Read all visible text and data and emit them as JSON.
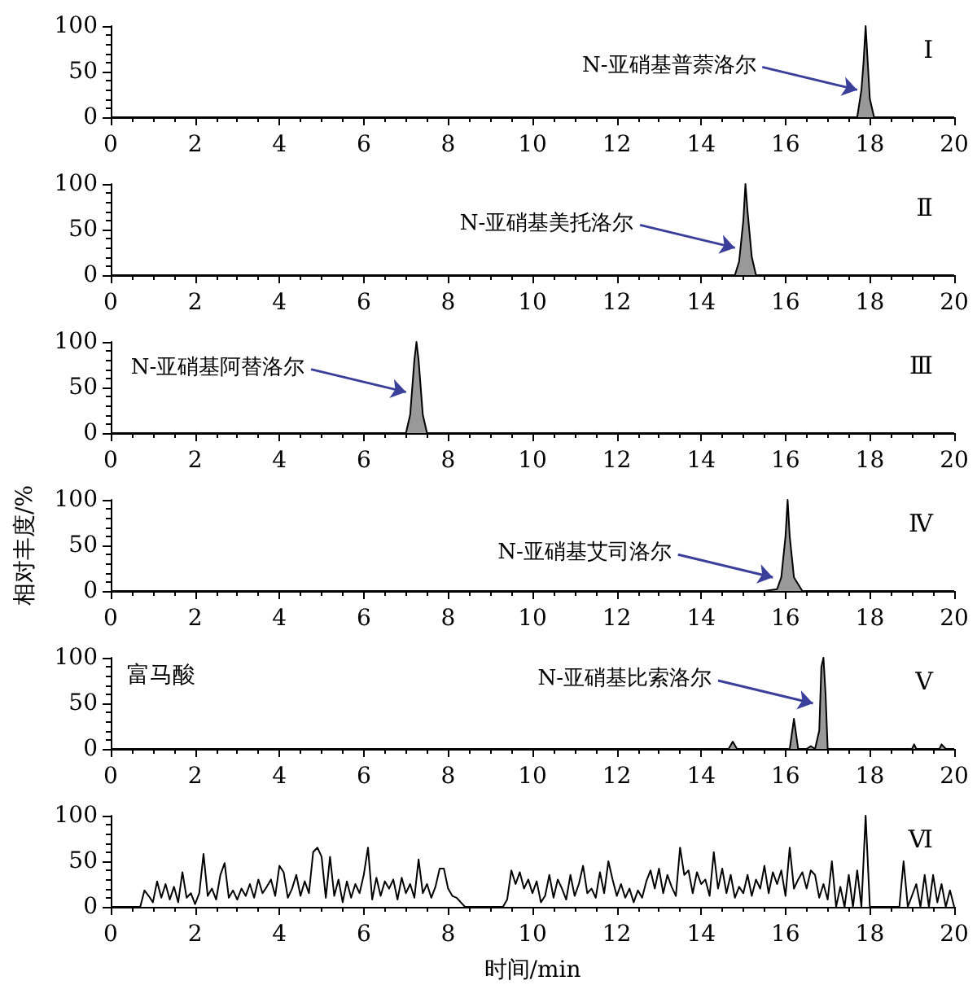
{
  "chart_data": [
    {
      "type": "area",
      "title": "Ⅰ",
      "x": [
        0,
        17.7,
        17.8,
        17.85,
        17.9,
        17.95,
        18.0,
        18.1,
        20
      ],
      "values": [
        0,
        0,
        30,
        60,
        100,
        60,
        20,
        0,
        0
      ],
      "color": "#000000",
      "xlim": [
        0,
        20
      ],
      "xticks": [
        0,
        2,
        4,
        6,
        8,
        10,
        12,
        14,
        16,
        18,
        20
      ],
      "ylim": [
        0,
        100
      ],
      "yticks": [
        0,
        50,
        100
      ],
      "marker": "none",
      "annotations": [
        {
          "text": "N-亚硝基普萘洛尔",
          "x": 17.85,
          "y": 30
        }
      ]
    },
    {
      "type": "area",
      "title": "Ⅱ",
      "x": [
        0,
        14.8,
        14.9,
        15.0,
        15.05,
        15.1,
        15.2,
        15.3,
        20
      ],
      "values": [
        0,
        0,
        15,
        60,
        100,
        70,
        20,
        0,
        0
      ],
      "color": "#000000",
      "xlim": [
        0,
        20
      ],
      "xticks": [
        0,
        2,
        4,
        6,
        8,
        10,
        12,
        14,
        16,
        18,
        20
      ],
      "ylim": [
        0,
        100
      ],
      "yticks": [
        0,
        50,
        100
      ],
      "marker": "none",
      "annotations": [
        {
          "text": "N-亚硝基美托洛尔",
          "x": 14.95,
          "y": 30
        }
      ]
    },
    {
      "type": "area",
      "title": "Ⅲ",
      "x": [
        0,
        7.0,
        7.1,
        7.2,
        7.25,
        7.3,
        7.4,
        7.5,
        20
      ],
      "values": [
        0,
        0,
        20,
        80,
        100,
        80,
        20,
        0,
        0
      ],
      "color": "#000000",
      "xlim": [
        0,
        20
      ],
      "xticks": [
        0,
        2,
        4,
        6,
        8,
        10,
        12,
        14,
        16,
        18,
        20
      ],
      "ylim": [
        0,
        100
      ],
      "yticks": [
        0,
        50,
        100
      ],
      "marker": "none",
      "annotations": [
        {
          "text": "N-亚硝基阿替洛尔",
          "x": 7.15,
          "y": 45
        }
      ]
    },
    {
      "type": "area",
      "title": "Ⅳ",
      "ylabel": "相对丰度/%",
      "x": [
        0,
        15.5,
        15.8,
        15.9,
        16.0,
        16.05,
        16.1,
        16.2,
        16.4,
        20
      ],
      "values": [
        0,
        0,
        2,
        15,
        60,
        100,
        60,
        15,
        0,
        0
      ],
      "color": "#000000",
      "xlim": [
        0,
        20
      ],
      "xticks": [
        0,
        2,
        4,
        6,
        8,
        10,
        12,
        14,
        16,
        18,
        20
      ],
      "ylim": [
        0,
        100
      ],
      "yticks": [
        0,
        50,
        100
      ],
      "marker": "none",
      "annotations": [
        {
          "text": "N-亚硝基艾司洛尔",
          "x": 15.85,
          "y": 15
        }
      ]
    },
    {
      "type": "area",
      "title": "Ⅴ",
      "x": [
        0,
        14.65,
        14.75,
        14.85,
        16.1,
        16.2,
        16.3,
        16.5,
        16.6,
        16.7,
        16.8,
        16.85,
        16.9,
        16.95,
        17.0,
        19.0,
        19.05,
        19.1,
        19.65,
        19.7,
        19.8,
        20
      ],
      "values": [
        0,
        0,
        8,
        0,
        0,
        33,
        0,
        0,
        3,
        0,
        20,
        90,
        100,
        60,
        0,
        0,
        5,
        0,
        0,
        5,
        0,
        0
      ],
      "color": "#000000",
      "xlim": [
        0,
        20
      ],
      "xticks": [
        0,
        2,
        4,
        6,
        8,
        10,
        12,
        14,
        16,
        18,
        20
      ],
      "ylim": [
        0,
        100
      ],
      "yticks": [
        0,
        50,
        100
      ],
      "marker": "none",
      "annotations": [
        "富马酸",
        {
          "text": "N-亚硝基比索洛尔",
          "x": 16.8,
          "y": 50
        }
      ]
    },
    {
      "type": "line",
      "title": "Ⅵ",
      "xlabel": "时间/min",
      "color": "#000000",
      "xlim": [
        0,
        20
      ],
      "xticks": [
        0,
        2,
        4,
        6,
        8,
        10,
        12,
        14,
        16,
        18,
        20
      ],
      "ylim": [
        0,
        100
      ],
      "yticks": [
        0,
        50,
        100
      ],
      "marker": "none",
      "x": [
        0,
        0.7,
        0.8,
        0.9,
        1.0,
        1.1,
        1.2,
        1.3,
        1.4,
        1.5,
        1.6,
        1.7,
        1.8,
        1.9,
        2.0,
        2.1,
        2.2,
        2.3,
        2.4,
        2.5,
        2.6,
        2.7,
        2.8,
        2.9,
        3.0,
        3.1,
        3.2,
        3.3,
        3.4,
        3.5,
        3.6,
        3.7,
        3.8,
        3.9,
        4.0,
        4.1,
        4.2,
        4.3,
        4.4,
        4.5,
        4.6,
        4.7,
        4.8,
        4.9,
        5.0,
        5.1,
        5.2,
        5.3,
        5.4,
        5.5,
        5.6,
        5.7,
        5.8,
        5.9,
        6.0,
        6.1,
        6.2,
        6.3,
        6.4,
        6.5,
        6.6,
        6.7,
        6.8,
        6.9,
        7.0,
        7.1,
        7.2,
        7.3,
        7.4,
        7.5,
        7.6,
        7.7,
        7.8,
        7.9,
        8.0,
        8.1,
        8.2,
        8.3,
        8.4,
        9.3,
        9.4,
        9.5,
        9.6,
        9.7,
        9.8,
        9.9,
        10.0,
        10.1,
        10.2,
        10.3,
        10.4,
        10.5,
        10.6,
        10.7,
        10.8,
        10.9,
        11.0,
        11.1,
        11.2,
        11.3,
        11.4,
        11.5,
        11.6,
        11.7,
        11.8,
        11.9,
        12.0,
        12.1,
        12.2,
        12.3,
        12.4,
        12.5,
        12.6,
        12.7,
        12.8,
        12.9,
        13.0,
        13.1,
        13.2,
        13.3,
        13.4,
        13.5,
        13.6,
        13.7,
        13.8,
        13.9,
        14.0,
        14.1,
        14.2,
        14.3,
        14.4,
        14.5,
        14.6,
        14.7,
        14.8,
        14.9,
        15.0,
        15.1,
        15.2,
        15.3,
        15.4,
        15.5,
        15.6,
        15.7,
        15.8,
        15.9,
        16.0,
        16.1,
        16.2,
        16.3,
        16.4,
        16.5,
        16.6,
        16.7,
        16.8,
        16.9,
        17.0,
        17.1,
        17.2,
        17.3,
        17.4,
        17.5,
        17.6,
        17.7,
        17.8,
        17.9,
        18.0,
        18.7,
        18.8,
        18.9,
        19.1,
        19.2,
        19.3,
        19.4,
        19.5,
        19.6,
        19.7,
        19.8,
        19.9,
        20
      ],
      "values": [
        0,
        0,
        18,
        12,
        5,
        28,
        10,
        25,
        8,
        22,
        5,
        38,
        10,
        15,
        3,
        15,
        58,
        12,
        20,
        8,
        35,
        48,
        10,
        18,
        8,
        20,
        12,
        25,
        10,
        30,
        15,
        22,
        30,
        12,
        45,
        38,
        10,
        20,
        35,
        12,
        28,
        15,
        60,
        65,
        55,
        10,
        55,
        12,
        30,
        5,
        28,
        10,
        25,
        15,
        35,
        65,
        8,
        32,
        12,
        28,
        20,
        30,
        8,
        32,
        15,
        25,
        10,
        52,
        15,
        25,
        10,
        22,
        42,
        42,
        20,
        12,
        10,
        5,
        0,
        0,
        8,
        40,
        25,
        38,
        20,
        30,
        15,
        28,
        5,
        12,
        35,
        10,
        30,
        20,
        8,
        35,
        12,
        25,
        45,
        15,
        20,
        10,
        38,
        15,
        50,
        30,
        12,
        25,
        10,
        20,
        5,
        18,
        10,
        28,
        40,
        20,
        42,
        15,
        35,
        22,
        12,
        65,
        35,
        40,
        15,
        38,
        25,
        30,
        12,
        60,
        20,
        42,
        15,
        35,
        10,
        22,
        15,
        35,
        12,
        30,
        20,
        45,
        15,
        38,
        25,
        40,
        12,
        65,
        20,
        30,
        38,
        20,
        40,
        35,
        10,
        25,
        8,
        50,
        0,
        22,
        0,
        35,
        0,
        40,
        0,
        100,
        0,
        0,
        50,
        0,
        25,
        0,
        35,
        0,
        35,
        5,
        25,
        0,
        18,
        0
      ]
    }
  ]
}
